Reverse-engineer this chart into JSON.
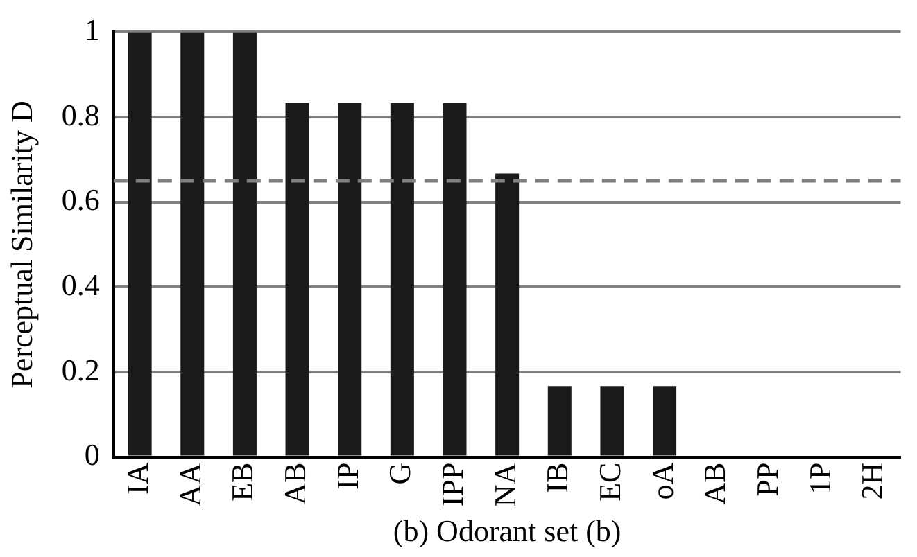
{
  "chart_data": {
    "type": "bar",
    "xlabel": "(b) Odorant set (b)",
    "ylabel": "Perceptual Similarity D",
    "categories": [
      "IA",
      "AA",
      "EB",
      "AB",
      "IP",
      "G",
      "IPP",
      "NA",
      "IB",
      "EC",
      "oA",
      "AB",
      "PP",
      "1P",
      "2H"
    ],
    "values": [
      1,
      1,
      1,
      0.833,
      0.833,
      0.833,
      0.833,
      0.667,
      0.167,
      0.167,
      0.167,
      0,
      0,
      0,
      0
    ],
    "color": "#1a1a1a",
    "ylim": [
      0,
      1
    ],
    "yticks": [
      0,
      0.2,
      0.4,
      0.6,
      0.8,
      1
    ],
    "grid": "y",
    "ref_lines": [
      {
        "axis": "y",
        "value": 0.65,
        "color": "#808080",
        "line_style": "dashed"
      }
    ]
  }
}
